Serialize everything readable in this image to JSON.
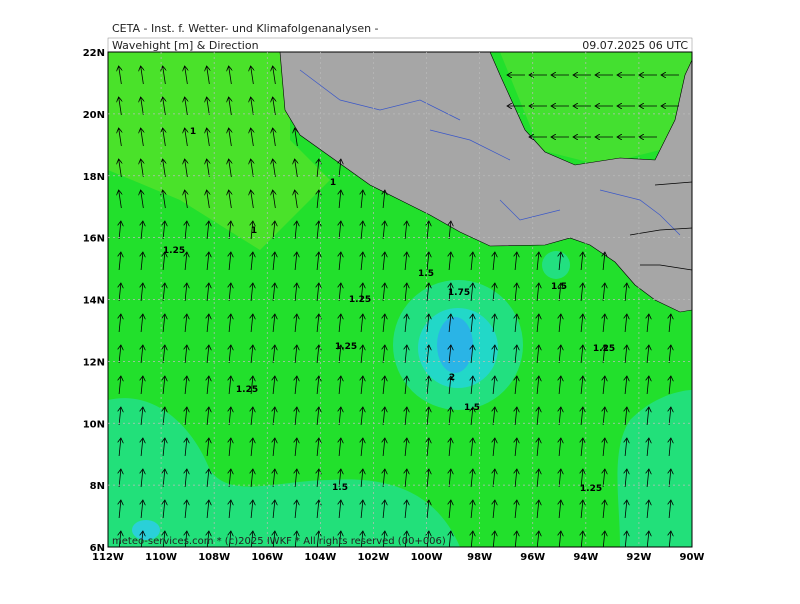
{
  "header": {
    "source": "CETA - Inst. f. Wetter- und Klimafolgenanalysen -",
    "title": "Wavehight [m] & Direction",
    "date": "09.07.2025  06 UTC"
  },
  "lat_labels": [
    "22N",
    "20N",
    "18N",
    "16N",
    "14N",
    "12N",
    "10N",
    "8N",
    "6N"
  ],
  "lon_labels": [
    "112W",
    "110W",
    "108W",
    "106W",
    "104W",
    "102W",
    "100W",
    "98W",
    "96W",
    "94W",
    "92W",
    "90W"
  ],
  "contour_labels": [
    "1",
    "1",
    "1",
    "1.25",
    "1.25",
    "1.25",
    "1.25",
    "1.25",
    "1.25",
    "1.5",
    "1.5",
    "1.5",
    "1.5",
    "1.75",
    "2"
  ],
  "credit": "meteo-services.com * (c)2025 IWKF * All rights reserved (00+006)"
}
